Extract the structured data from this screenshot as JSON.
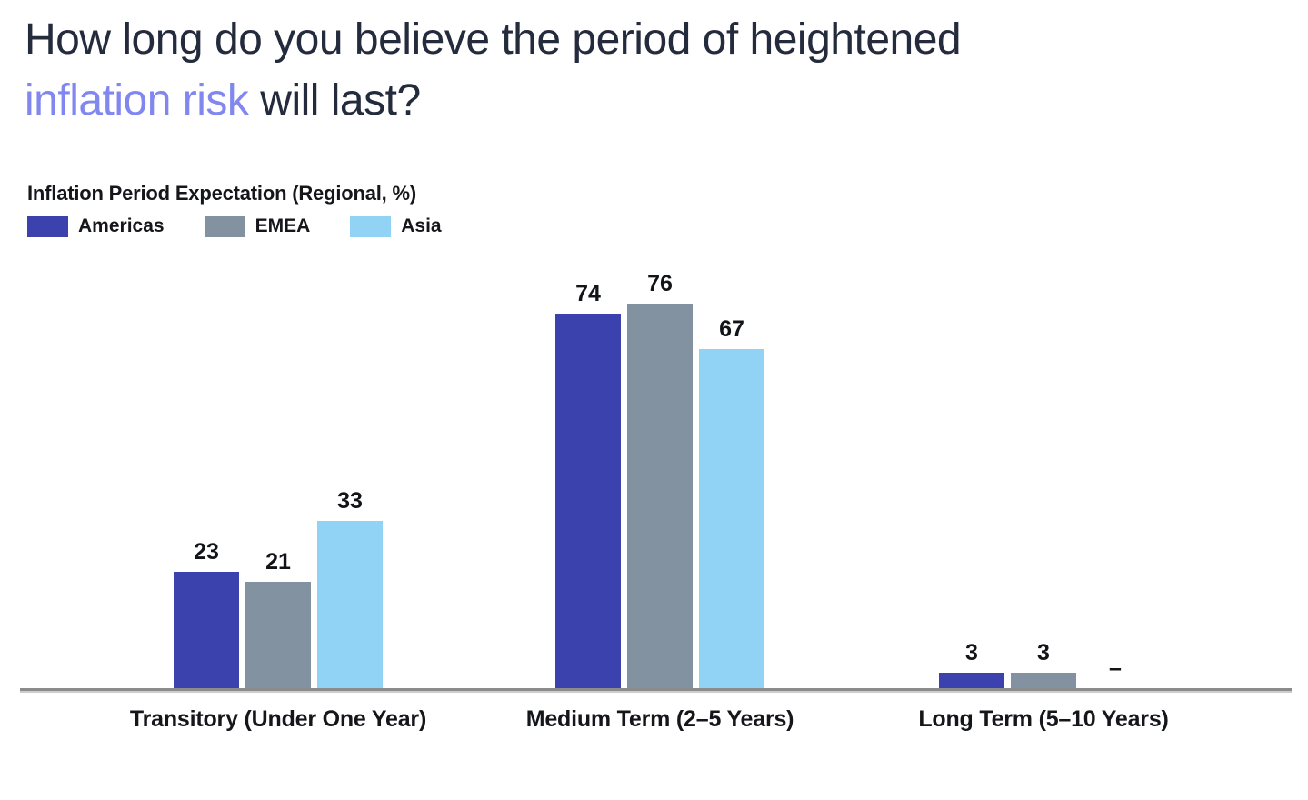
{
  "title": {
    "line1": "How long do you believe the period of heightened",
    "line2_accent": "inflation risk",
    "line2_rest": " will last?"
  },
  "colors": {
    "title_text": "#242b3d",
    "title_accent": "#8187ef",
    "label_text": "#14161a",
    "axis_line": "#8b8b8b",
    "axis_line_shadow": "#cdcdcd",
    "background": "#ffffff"
  },
  "chart_data": {
    "type": "bar",
    "title": "Inflation Period Expectation (Regional, %)",
    "categories": [
      "Transitory (Under One Year)",
      "Medium Term (2–5 Years)",
      "Long Term (5–10 Years)"
    ],
    "series": [
      {
        "name": "Americas",
        "color": "#3b42ad",
        "values": [
          23,
          74,
          3
        ],
        "display_labels": [
          "23",
          "74",
          "3"
        ]
      },
      {
        "name": "EMEA",
        "color": "#8292a0",
        "values": [
          21,
          76,
          3
        ],
        "display_labels": [
          "21",
          "76",
          "3"
        ]
      },
      {
        "name": "Asia",
        "color": "#90d3f4",
        "values": [
          33,
          67,
          0
        ],
        "display_labels": [
          "33",
          "67",
          "–"
        ]
      }
    ],
    "unit": "%",
    "ylim": [
      0,
      80
    ],
    "grid": false,
    "legend_position": "top-left",
    "value_labels": true,
    "no_data_marker": "–"
  }
}
